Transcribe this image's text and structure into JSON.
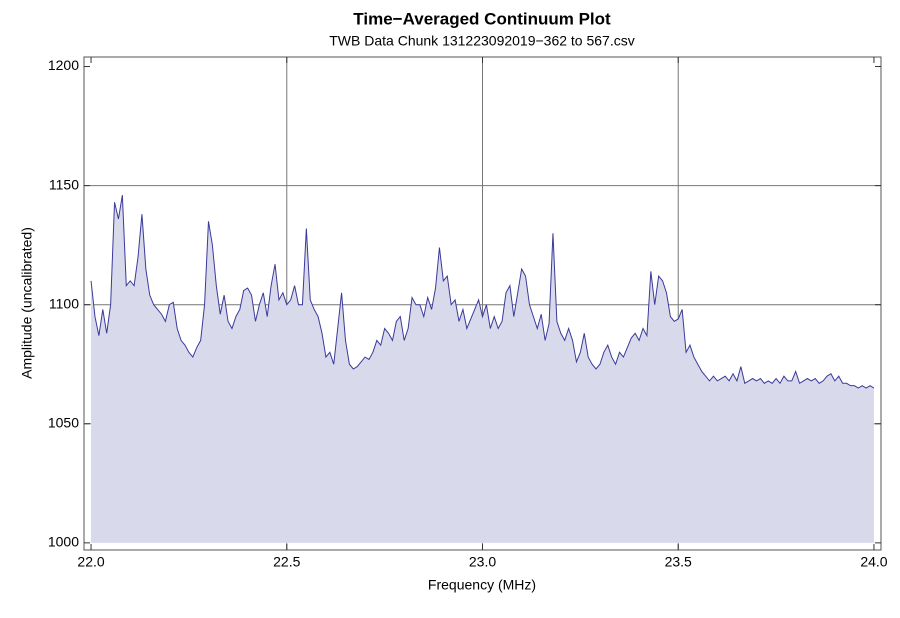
{
  "chart_data": {
    "type": "area",
    "title": "Time−Averaged Continuum Plot",
    "subtitle": "TWB Data Chunk 131223092019−362 to 567.csv",
    "xlabel": "Frequency (MHz)",
    "ylabel": "Amplitude (uncalibrated)",
    "color": "#3a3a9a",
    "fill_color": "#d9d9ec",
    "filling": 1000,
    "xlim": [
      21.982,
      24.018
    ],
    "ylim": [
      997,
      1204
    ],
    "xticks": [
      {
        "value": 22,
        "label": "22.0"
      },
      22.5,
      {
        "value": 23,
        "label": "23.0"
      },
      23.5,
      {
        "value": 24,
        "label": "24.0"
      }
    ],
    "yticks": [
      1000,
      1050,
      1100,
      1150,
      1200
    ],
    "xgrid": [
      22.5,
      23,
      23.5
    ],
    "ygrid": [
      1050,
      1100,
      1150
    ],
    "x": [
      22,
      22.01,
      22.02,
      22.03,
      22.04,
      22.05,
      22.06,
      22.07,
      22.08,
      22.09,
      22.1,
      22.11,
      22.12,
      22.13,
      22.14,
      22.15,
      22.16,
      22.17,
      22.18,
      22.19,
      22.2,
      22.21,
      22.22,
      22.23,
      22.24,
      22.25,
      22.26,
      22.27,
      22.28,
      22.29,
      22.3,
      22.31,
      22.32,
      22.33,
      22.34,
      22.35,
      22.36,
      22.37,
      22.38,
      22.39,
      22.4,
      22.41,
      22.42,
      22.43,
      22.44,
      22.45,
      22.46,
      22.47,
      22.48,
      22.49,
      22.5,
      22.51,
      22.52,
      22.53,
      22.54,
      22.55,
      22.56,
      22.57,
      22.58,
      22.59,
      22.6,
      22.61,
      22.62,
      22.63,
      22.64,
      22.65,
      22.66,
      22.67,
      22.68,
      22.69,
      22.7,
      22.71,
      22.72,
      22.73,
      22.74,
      22.75,
      22.76,
      22.77,
      22.78,
      22.79,
      22.8,
      22.81,
      22.82,
      22.83,
      22.84,
      22.85,
      22.86,
      22.87,
      22.88,
      22.89,
      22.9,
      22.91,
      22.92,
      22.93,
      22.94,
      22.95,
      22.96,
      22.97,
      22.98,
      22.99,
      23,
      23.01,
      23.02,
      23.03,
      23.04,
      23.05,
      23.06,
      23.07,
      23.08,
      23.09,
      23.1,
      23.11,
      23.12,
      23.13,
      23.14,
      23.15,
      23.16,
      23.17,
      23.18,
      23.19,
      23.2,
      23.21,
      23.22,
      23.23,
      23.24,
      23.25,
      23.26,
      23.27,
      23.28,
      23.29,
      23.3,
      23.31,
      23.32,
      23.33,
      23.34,
      23.35,
      23.36,
      23.37,
      23.38,
      23.39,
      23.4,
      23.41,
      23.42,
      23.43,
      23.44,
      23.45,
      23.46,
      23.47,
      23.48,
      23.49,
      23.5,
      23.51,
      23.52,
      23.53,
      23.54,
      23.55,
      23.56,
      23.57,
      23.58,
      23.59,
      23.6,
      23.61,
      23.62,
      23.63,
      23.64,
      23.65,
      23.66,
      23.67,
      23.68,
      23.69,
      23.7,
      23.71,
      23.72,
      23.73,
      23.74,
      23.75,
      23.76,
      23.77,
      23.78,
      23.79,
      23.8,
      23.81,
      23.82,
      23.83,
      23.84,
      23.85,
      23.86,
      23.87,
      23.88,
      23.89,
      23.9,
      23.91,
      23.92,
      23.93,
      23.94,
      23.95,
      23.96,
      23.97,
      23.98,
      23.99,
      24
    ],
    "values": [
      1110,
      1095,
      1087,
      1098,
      1088,
      1100,
      1143,
      1136,
      1146,
      1108,
      1110,
      1108,
      1120,
      1138,
      1115,
      1104,
      1100,
      1098,
      1096,
      1093,
      1100,
      1101,
      1090,
      1085,
      1083,
      1080,
      1078,
      1082,
      1085,
      1100,
      1135,
      1125,
      1108,
      1096,
      1104,
      1093,
      1090,
      1095,
      1098,
      1106,
      1107,
      1104,
      1093,
      1100,
      1105,
      1095,
      1108,
      1117,
      1102,
      1105,
      1100,
      1102,
      1108,
      1100,
      1100,
      1132,
      1102,
      1098,
      1095,
      1088,
      1078,
      1080,
      1075,
      1090,
      1105,
      1085,
      1075,
      1073,
      1074,
      1076,
      1078,
      1077,
      1080,
      1085,
      1083,
      1090,
      1088,
      1085,
      1093,
      1095,
      1085,
      1090,
      1103,
      1100,
      1100,
      1095,
      1103,
      1098,
      1107,
      1124,
      1110,
      1112,
      1100,
      1102,
      1093,
      1098,
      1090,
      1094,
      1098,
      1102,
      1095,
      1100,
      1090,
      1095,
      1090,
      1093,
      1105,
      1108,
      1095,
      1105,
      1115,
      1112,
      1100,
      1095,
      1090,
      1096,
      1085,
      1092,
      1130,
      1093,
      1088,
      1085,
      1090,
      1085,
      1076,
      1080,
      1088,
      1078,
      1075,
      1073,
      1075,
      1080,
      1083,
      1078,
      1075,
      1080,
      1078,
      1082,
      1086,
      1088,
      1085,
      1090,
      1087,
      1114,
      1100,
      1112,
      1110,
      1105,
      1095,
      1093,
      1094,
      1098,
      1080,
      1083,
      1078,
      1075,
      1072,
      1070,
      1068,
      1070,
      1068,
      1069,
      1070,
      1068,
      1071,
      1068,
      1074,
      1067,
      1068,
      1069,
      1068,
      1069,
      1067,
      1068,
      1067,
      1069,
      1067,
      1070,
      1068,
      1068,
      1072,
      1067,
      1068,
      1069,
      1068,
      1069,
      1067,
      1068,
      1070,
      1071,
      1068,
      1070,
      1067,
      1067,
      1066,
      1066,
      1065,
      1066,
      1065,
      1066,
      1065
    ]
  }
}
